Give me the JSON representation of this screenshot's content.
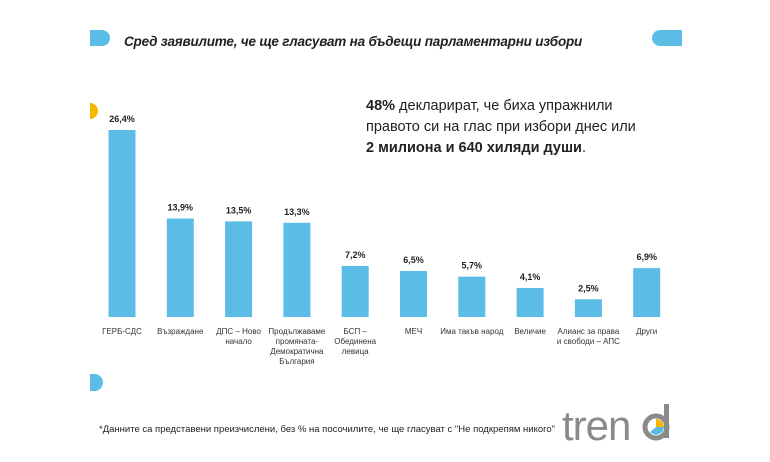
{
  "title": "Сред заявилите, че ще гласуват на бъдещи парламентарни избори",
  "callout": {
    "bold1": "48%",
    "text1": " декларират, че биха упражнили правото си на глас при избори днес или ",
    "bold2": "2 милиона и 640 хиляди души",
    "text2": "."
  },
  "footnote": "*Данните са представени преизчислени, без % на посочилите, че ще гласуват с \"Не подкрепям никого\"",
  "logo": "trend",
  "colors": {
    "bar": "#5bbde6",
    "accent": "#f5b800",
    "logo": "#8a8a8a"
  },
  "chart_data": {
    "type": "bar",
    "categories": [
      "ГЕРБ-СДС",
      "Възраждане",
      "ДПС – Ново начало",
      "Продължаваме промяната-Демократична България",
      "БСП – Обединена левица",
      "МЕЧ",
      "Има такъв народ",
      "Величие",
      "Алианс за права и свободи – АПС",
      "Други"
    ],
    "values": [
      26.4,
      13.9,
      13.5,
      13.3,
      7.2,
      6.5,
      5.7,
      4.1,
      2.5,
      6.9
    ],
    "value_labels": [
      "26,4%",
      "13,9%",
      "13,5%",
      "13,3%",
      "7,2%",
      "6,5%",
      "5,7%",
      "4,1%",
      "2,5%",
      "6,9%"
    ],
    "title": "Сред заявилите, че ще гласуват на бъдещи парламентарни избори",
    "xlabel": "",
    "ylabel": "",
    "ylim": [
      0,
      30
    ],
    "grid": false
  }
}
